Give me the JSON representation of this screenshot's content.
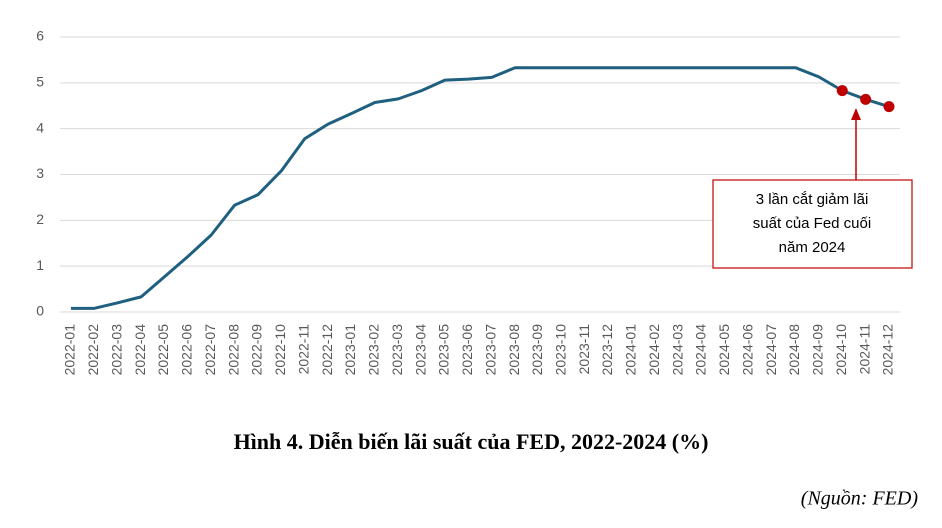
{
  "chart_data": {
    "type": "line",
    "title": "Hình 4. Diễn biến lãi suất của FED, 2022-2024 (%)",
    "source": "(Nguồn: FED)",
    "categories": [
      "2022-01",
      "2022-02",
      "2022-03",
      "2022-04",
      "2022-05",
      "2022-06",
      "2022-07",
      "2022-08",
      "2022-09",
      "2022-10",
      "2022-11",
      "2022-12",
      "2023-01",
      "2023-02",
      "2023-03",
      "2023-04",
      "2023-05",
      "2023-06",
      "2023-07",
      "2023-08",
      "2023-09",
      "2023-10",
      "2023-11",
      "2023-12",
      "2024-01",
      "2024-02",
      "2024-03",
      "2024-04",
      "2024-05",
      "2024-06",
      "2024-07",
      "2024-08",
      "2024-09",
      "2024-10",
      "2024-11",
      "2024-12"
    ],
    "series": [
      {
        "name": "Lãi suất FED",
        "color": "#1f5f7f",
        "values": [
          0.08,
          0.08,
          0.2,
          0.33,
          0.77,
          1.21,
          1.68,
          2.33,
          2.56,
          3.08,
          3.78,
          4.1,
          4.33,
          4.57,
          4.65,
          4.83,
          5.06,
          5.08,
          5.12,
          5.33,
          5.33,
          5.33,
          5.33,
          5.33,
          5.33,
          5.33,
          5.33,
          5.33,
          5.33,
          5.33,
          5.33,
          5.33,
          5.13,
          4.83,
          4.64,
          4.48
        ]
      }
    ],
    "markers": {
      "color": "#c00000",
      "indices": [
        33,
        34,
        35
      ]
    },
    "annotation": {
      "lines": [
        "3 lần cắt giảm lãi",
        "suất của Fed cuối",
        "năm 2024"
      ],
      "color": "#c00000"
    },
    "ylim": [
      0,
      6
    ],
    "yticks": [
      0,
      1,
      2,
      3,
      4,
      5,
      6
    ],
    "grid": true
  }
}
